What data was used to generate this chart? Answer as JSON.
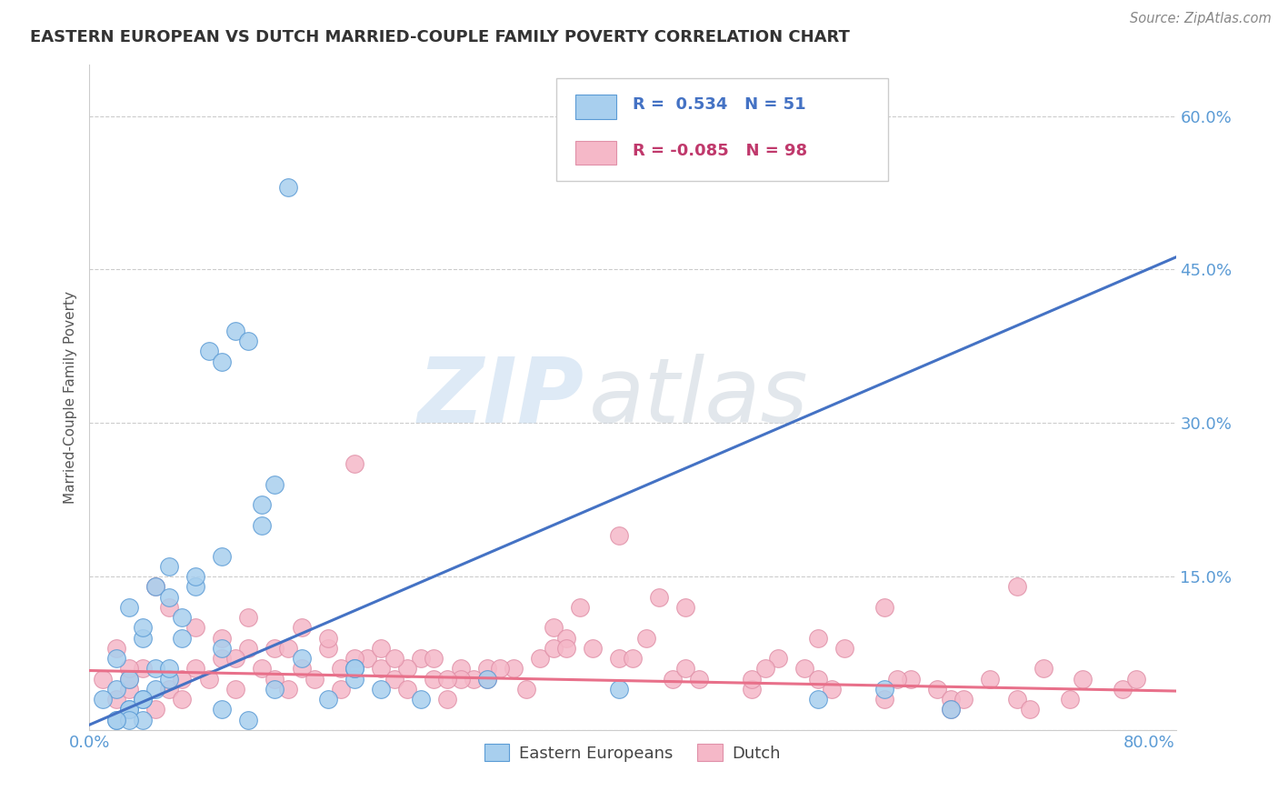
{
  "title": "EASTERN EUROPEAN VS DUTCH MARRIED-COUPLE FAMILY POVERTY CORRELATION CHART",
  "source": "Source: ZipAtlas.com",
  "ylabel": "Married-Couple Family Poverty",
  "xlim": [
    0.0,
    0.82
  ],
  "ylim": [
    0.0,
    0.65
  ],
  "ytick_vals": [
    0.0,
    0.15,
    0.3,
    0.45,
    0.6
  ],
  "ytick_labels": [
    "",
    "15.0%",
    "30.0%",
    "45.0%",
    "60.0%"
  ],
  "background_color": "#ffffff",
  "grid_color": "#cccccc",
  "eastern_R": 0.534,
  "eastern_N": 51,
  "dutch_R": -0.085,
  "dutch_N": 98,
  "eastern_color": "#A8CFEE",
  "dutch_color": "#F5B8C8",
  "eastern_line_color": "#4472C4",
  "dutch_line_color": "#E8708A",
  "title_color": "#333333",
  "tick_label_color": "#5B9BD5",
  "legend_eastern_color": "#4472C4",
  "legend_dutch_color": "#C0396C",
  "legend_label_color": "#333333",
  "eastern_x": [
    0.02,
    0.03,
    0.04,
    0.02,
    0.03,
    0.01,
    0.03,
    0.04,
    0.02,
    0.05,
    0.04,
    0.05,
    0.06,
    0.03,
    0.04,
    0.05,
    0.06,
    0.07,
    0.08,
    0.06,
    0.08,
    0.1,
    0.09,
    0.11,
    0.12,
    0.1,
    0.13,
    0.14,
    0.13,
    0.15,
    0.16,
    0.18,
    0.2,
    0.22,
    0.25,
    0.07,
    0.14,
    0.2,
    0.3,
    0.4,
    0.55,
    0.6,
    0.1,
    0.12,
    0.06,
    0.04,
    0.03,
    0.02,
    0.65,
    0.1,
    0.2
  ],
  "eastern_y": [
    0.01,
    0.02,
    0.01,
    0.04,
    0.02,
    0.03,
    0.05,
    0.03,
    0.07,
    0.04,
    0.09,
    0.06,
    0.05,
    0.12,
    0.1,
    0.14,
    0.13,
    0.11,
    0.14,
    0.16,
    0.15,
    0.17,
    0.37,
    0.39,
    0.38,
    0.36,
    0.22,
    0.24,
    0.2,
    0.53,
    0.07,
    0.03,
    0.05,
    0.04,
    0.03,
    0.09,
    0.04,
    0.06,
    0.05,
    0.04,
    0.03,
    0.04,
    0.02,
    0.01,
    0.06,
    0.03,
    0.01,
    0.01,
    0.02,
    0.08,
    0.06
  ],
  "dutch_x": [
    0.01,
    0.02,
    0.03,
    0.04,
    0.05,
    0.02,
    0.03,
    0.06,
    0.07,
    0.08,
    0.09,
    0.1,
    0.11,
    0.12,
    0.13,
    0.14,
    0.15,
    0.16,
    0.17,
    0.18,
    0.19,
    0.2,
    0.21,
    0.22,
    0.23,
    0.24,
    0.25,
    0.26,
    0.27,
    0.28,
    0.29,
    0.3,
    0.32,
    0.33,
    0.34,
    0.35,
    0.36,
    0.37,
    0.38,
    0.4,
    0.42,
    0.43,
    0.44,
    0.45,
    0.5,
    0.52,
    0.54,
    0.55,
    0.57,
    0.6,
    0.62,
    0.64,
    0.65,
    0.68,
    0.7,
    0.72,
    0.74,
    0.75,
    0.78,
    0.79,
    0.05,
    0.06,
    0.08,
    0.1,
    0.12,
    0.14,
    0.16,
    0.18,
    0.2,
    0.22,
    0.24,
    0.26,
    0.28,
    0.3,
    0.35,
    0.4,
    0.45,
    0.5,
    0.55,
    0.6,
    0.65,
    0.7,
    0.03,
    0.07,
    0.11,
    0.15,
    0.19,
    0.23,
    0.27,
    0.31,
    0.36,
    0.41,
    0.46,
    0.51,
    0.56,
    0.61,
    0.66,
    0.71
  ],
  "dutch_y": [
    0.05,
    0.03,
    0.04,
    0.06,
    0.02,
    0.08,
    0.05,
    0.04,
    0.03,
    0.06,
    0.05,
    0.07,
    0.04,
    0.08,
    0.06,
    0.05,
    0.04,
    0.06,
    0.05,
    0.08,
    0.04,
    0.26,
    0.07,
    0.06,
    0.05,
    0.04,
    0.07,
    0.05,
    0.03,
    0.06,
    0.05,
    0.05,
    0.06,
    0.04,
    0.07,
    0.1,
    0.09,
    0.12,
    0.08,
    0.19,
    0.09,
    0.13,
    0.05,
    0.12,
    0.04,
    0.07,
    0.06,
    0.05,
    0.08,
    0.12,
    0.05,
    0.04,
    0.03,
    0.05,
    0.14,
    0.06,
    0.03,
    0.05,
    0.04,
    0.05,
    0.14,
    0.12,
    0.1,
    0.09,
    0.11,
    0.08,
    0.1,
    0.09,
    0.07,
    0.08,
    0.06,
    0.07,
    0.05,
    0.06,
    0.08,
    0.07,
    0.06,
    0.05,
    0.09,
    0.03,
    0.02,
    0.03,
    0.06,
    0.05,
    0.07,
    0.08,
    0.06,
    0.07,
    0.05,
    0.06,
    0.08,
    0.07,
    0.05,
    0.06,
    0.04,
    0.05,
    0.03,
    0.02
  ],
  "line_eastern_x0": 0.0,
  "line_eastern_y0": 0.005,
  "line_eastern_x1": 0.82,
  "line_eastern_y1": 0.462,
  "line_dutch_x0": 0.0,
  "line_dutch_y0": 0.058,
  "line_dutch_x1": 0.82,
  "line_dutch_y1": 0.038
}
